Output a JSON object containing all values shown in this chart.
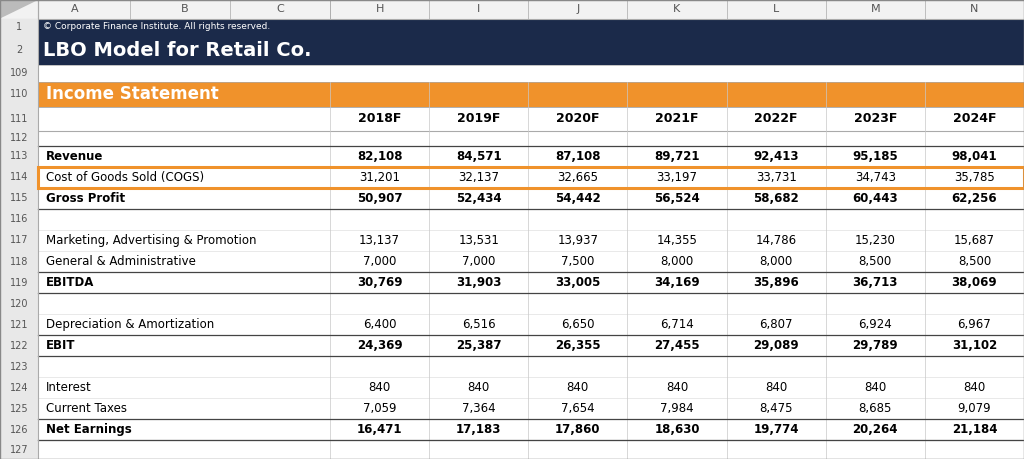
{
  "title_row1": "© Corporate Finance Institute. All rights reserved.",
  "title_row2": "LBO Model for Retail Co.",
  "section_header": "Income Statement",
  "years": [
    "2018F",
    "2019F",
    "2020F",
    "2021F",
    "2022F",
    "2023F",
    "2024F"
  ],
  "rows": [
    {
      "label": "Revenue",
      "bold": true,
      "values": [
        82108,
        84571,
        87108,
        89721,
        92413,
        95185,
        98041
      ],
      "highlighted": false
    },
    {
      "label": "Cost of Goods Sold (COGS)",
      "bold": false,
      "values": [
        31201,
        32137,
        32665,
        33197,
        33731,
        34743,
        35785
      ],
      "highlighted": true
    },
    {
      "label": "Gross Profit",
      "bold": true,
      "values": [
        50907,
        52434,
        54442,
        56524,
        58682,
        60443,
        62256
      ],
      "highlighted": false
    },
    {
      "label": "",
      "bold": false,
      "values": [],
      "highlighted": false
    },
    {
      "label": "Marketing, Advertising & Promotion",
      "bold": false,
      "values": [
        13137,
        13531,
        13937,
        14355,
        14786,
        15230,
        15687
      ],
      "highlighted": false
    },
    {
      "label": "General & Administrative",
      "bold": false,
      "values": [
        7000,
        7000,
        7500,
        8000,
        8000,
        8500,
        8500
      ],
      "highlighted": false
    },
    {
      "label": "EBITDA",
      "bold": true,
      "values": [
        30769,
        31903,
        33005,
        34169,
        35896,
        36713,
        38069
      ],
      "highlighted": false
    },
    {
      "label": "",
      "bold": false,
      "values": [],
      "highlighted": false
    },
    {
      "label": "Depreciation & Amortization",
      "bold": false,
      "values": [
        6400,
        6516,
        6650,
        6714,
        6807,
        6924,
        6967
      ],
      "highlighted": false
    },
    {
      "label": "EBIT",
      "bold": true,
      "values": [
        24369,
        25387,
        26355,
        27455,
        29089,
        29789,
        31102
      ],
      "highlighted": false
    },
    {
      "label": "",
      "bold": false,
      "values": [],
      "highlighted": false
    },
    {
      "label": "Interest",
      "bold": false,
      "values": [
        840,
        840,
        840,
        840,
        840,
        840,
        840
      ],
      "highlighted": false
    },
    {
      "label": "Current Taxes",
      "bold": false,
      "values": [
        7059,
        7364,
        7654,
        7984,
        8475,
        8685,
        9079
      ],
      "highlighted": false
    },
    {
      "label": "Net Earnings",
      "bold": true,
      "values": [
        16471,
        17183,
        17860,
        18630,
        19774,
        20264,
        21184
      ],
      "highlighted": false
    }
  ],
  "row_numbers": [
    113,
    114,
    115,
    116,
    117,
    118,
    119,
    120,
    121,
    122,
    123,
    124,
    125,
    126
  ],
  "header_bg": "#1B2A4A",
  "header_text_color": "#FFFFFF",
  "section_bg": "#F0922B",
  "section_text_color": "#FFFFFF",
  "highlight_border_color": "#F0922B",
  "rownum_bg": "#E8E8E8",
  "rownum_text_color": "#555555",
  "grid_color": "#C8C8C8",
  "bold_line_color": "#444444",
  "excel_col_header_bg": "#F2F2F2",
  "excel_cols": [
    "A",
    "B",
    "C",
    "H",
    "I",
    "J",
    "K",
    "L",
    "M",
    "N"
  ]
}
